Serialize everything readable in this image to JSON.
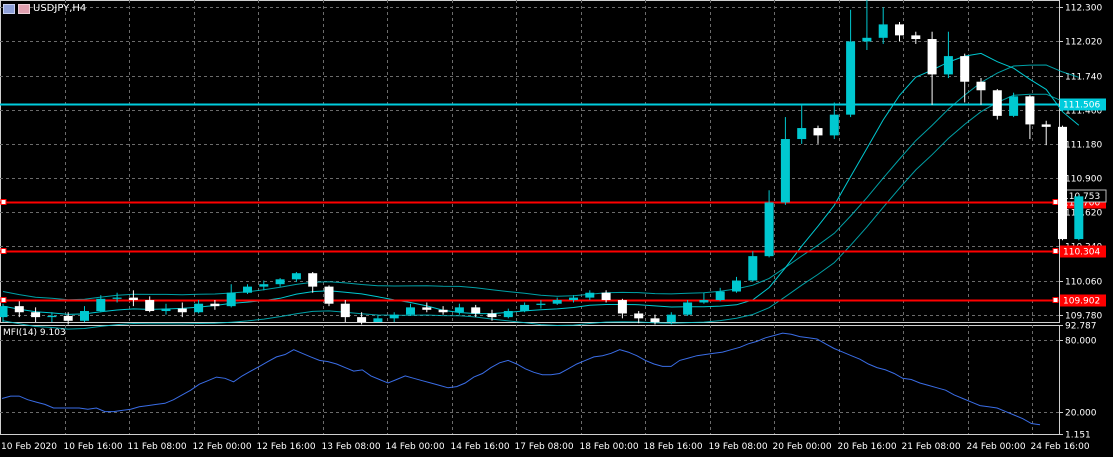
{
  "window": {
    "title": "USDJPY,H4"
  },
  "chart_data": {
    "type": "candlestick",
    "symbol": "USDJPY",
    "timeframe": "H4",
    "price_ylim": [
      109.72,
      112.36
    ],
    "price_ticks": [
      "112.300",
      "112.020",
      "111.740",
      "111.460",
      "111.180",
      "110.900",
      "110.620",
      "110.340",
      "110.060",
      "109.780"
    ],
    "current_price_labels": [
      {
        "value": 110.753,
        "text": "110.753",
        "bg": "#000000",
        "fg": "#ffffff"
      }
    ],
    "horizontal_lines": [
      {
        "value": 111.506,
        "label": "111.506",
        "color": "#00ccdd"
      },
      {
        "value": 110.7,
        "label": "110.700",
        "color": "#ff0000"
      },
      {
        "value": 110.304,
        "label": "110.304",
        "color": "#ff0000"
      },
      {
        "value": 109.902,
        "label": "109.902",
        "color": "#ff0000"
      }
    ],
    "x_labels": [
      "10 Feb 2020",
      "10 Feb 16:00",
      "11 Feb 08:00",
      "12 Feb 00:00",
      "12 Feb 16:00",
      "13 Feb 08:00",
      "14 Feb 00:00",
      "14 Feb 16:00",
      "17 Feb 08:00",
      "18 Feb 00:00",
      "18 Feb 16:00",
      "19 Feb 08:00",
      "20 Feb 00:00",
      "20 Feb 16:00",
      "21 Feb 08:00",
      "24 Feb 00:00",
      "24 Feb 16:00"
    ],
    "candles": [
      [
        109.76,
        109.85,
        109.72,
        109.87
      ],
      [
        109.85,
        109.8,
        109.76,
        109.89
      ],
      [
        109.8,
        109.76,
        109.72,
        109.84
      ],
      [
        109.76,
        109.77,
        109.72,
        109.8
      ],
      [
        109.77,
        109.73,
        109.7,
        109.8
      ],
      [
        109.73,
        109.81,
        109.72,
        109.85
      ],
      [
        109.81,
        109.91,
        109.8,
        109.94
      ],
      [
        109.91,
        109.92,
        109.88,
        109.96
      ],
      [
        109.92,
        109.9,
        109.85,
        109.98
      ],
      [
        109.9,
        109.81,
        109.8,
        109.93
      ],
      [
        109.81,
        109.83,
        109.78,
        109.87
      ],
      [
        109.83,
        109.8,
        109.76,
        109.88
      ],
      [
        109.8,
        109.87,
        109.79,
        109.9
      ],
      [
        109.87,
        109.85,
        109.82,
        109.9
      ],
      [
        109.85,
        109.96,
        109.84,
        110.03
      ],
      [
        109.96,
        110.01,
        109.95,
        110.03
      ],
      [
        110.01,
        110.03,
        109.98,
        110.06
      ],
      [
        110.03,
        110.07,
        110.01,
        110.08
      ],
      [
        110.07,
        110.12,
        110.05,
        110.13
      ],
      [
        110.12,
        110.01,
        109.96,
        110.13
      ],
      [
        110.01,
        109.87,
        109.85,
        110.02
      ],
      [
        109.87,
        109.76,
        109.72,
        109.9
      ],
      [
        109.76,
        109.72,
        109.7,
        109.8
      ],
      [
        109.72,
        109.75,
        109.72,
        109.78
      ],
      [
        109.75,
        109.78,
        109.72,
        109.8
      ],
      [
        109.78,
        109.84,
        109.77,
        109.87
      ],
      [
        109.84,
        109.82,
        109.8,
        109.88
      ],
      [
        109.82,
        109.8,
        109.78,
        109.85
      ],
      [
        109.8,
        109.84,
        109.78,
        109.87
      ],
      [
        109.84,
        109.79,
        109.76,
        109.86
      ],
      [
        109.79,
        109.76,
        109.73,
        109.82
      ],
      [
        109.76,
        109.81,
        109.75,
        109.83
      ],
      [
        109.81,
        109.86,
        109.8,
        109.88
      ],
      [
        109.86,
        109.87,
        109.83,
        109.9
      ],
      [
        109.87,
        109.9,
        109.86,
        109.92
      ],
      [
        109.9,
        109.92,
        109.88,
        109.94
      ],
      [
        109.92,
        109.96,
        109.9,
        109.98
      ],
      [
        109.96,
        109.9,
        109.88,
        109.98
      ],
      [
        109.9,
        109.79,
        109.75,
        109.91
      ],
      [
        109.79,
        109.75,
        109.71,
        109.81
      ],
      [
        109.75,
        109.72,
        109.7,
        109.78
      ],
      [
        109.72,
        109.78,
        109.7,
        109.8
      ],
      [
        109.78,
        109.88,
        109.77,
        109.9
      ],
      [
        109.88,
        109.9,
        109.87,
        109.96
      ],
      [
        109.9,
        109.97,
        109.89,
        110.0
      ],
      [
        109.97,
        110.06,
        109.96,
        110.09
      ],
      [
        110.06,
        110.26,
        110.05,
        110.3
      ],
      [
        110.26,
        110.7,
        110.25,
        110.8
      ],
      [
        110.7,
        111.22,
        110.68,
        111.4
      ],
      [
        111.22,
        111.31,
        111.18,
        111.5
      ],
      [
        111.31,
        111.25,
        111.18,
        111.33
      ],
      [
        111.25,
        111.42,
        111.22,
        111.52
      ],
      [
        111.42,
        112.02,
        111.4,
        112.28
      ],
      [
        112.02,
        112.05,
        111.95,
        112.38
      ],
      [
        112.05,
        112.16,
        112.0,
        112.3
      ],
      [
        112.16,
        112.07,
        112.02,
        112.18
      ],
      [
        112.07,
        112.04,
        112.0,
        112.1
      ],
      [
        112.04,
        111.75,
        111.5,
        112.1
      ],
      [
        111.75,
        111.9,
        111.72,
        112.1
      ],
      [
        111.9,
        111.69,
        111.52,
        111.92
      ],
      [
        111.69,
        111.62,
        111.5,
        111.72
      ],
      [
        111.62,
        111.41,
        111.38,
        111.63
      ],
      [
        111.41,
        111.57,
        111.4,
        111.6
      ],
      [
        111.57,
        111.34,
        111.22,
        111.58
      ],
      [
        111.34,
        111.32,
        111.17,
        111.37
      ],
      [
        111.32,
        110.4,
        110.39,
        111.33
      ],
      [
        110.4,
        110.75,
        110.39,
        110.76
      ]
    ],
    "indicator": {
      "name": "MFI(14)",
      "label": "MFI(14) 9.103",
      "value": 9.103,
      "ylim": [
        1.151,
        92.787
      ],
      "ticks": [
        "92.787",
        "80.000",
        "20.000",
        "1.151"
      ],
      "levels": [
        80,
        20
      ],
      "values": [
        31,
        33,
        33,
        30,
        28,
        26,
        23,
        23,
        23,
        23,
        22,
        23,
        20,
        20,
        21,
        22,
        24,
        25,
        26,
        27,
        30,
        34,
        38,
        43,
        46,
        49,
        48,
        45,
        50,
        54,
        58,
        62,
        66,
        68,
        72,
        69,
        66,
        63,
        62,
        60,
        57,
        54,
        55,
        50,
        47,
        44,
        47,
        50,
        48,
        46,
        44,
        42,
        40,
        41,
        44,
        49,
        52,
        57,
        61,
        63,
        60,
        56,
        53,
        51,
        51,
        52,
        56,
        60,
        63,
        66,
        67,
        69,
        72,
        70,
        67,
        63,
        60,
        58,
        58,
        63,
        65,
        67,
        68,
        69,
        70,
        72,
        74,
        77,
        79,
        82,
        84,
        86,
        85,
        83,
        82,
        81,
        77,
        73,
        70,
        67,
        64,
        60,
        57,
        55,
        52,
        48,
        47,
        44,
        42,
        40,
        38,
        34,
        31,
        28,
        25,
        24,
        23,
        20,
        17,
        14,
        10,
        9
      ]
    },
    "colors": {
      "bull": "#00c8d0",
      "bear": "#ffffff",
      "grid": "#6b6b6b",
      "axis_text": "#ffffff",
      "band": "#00c8d0",
      "mfi": "#3a6de6",
      "hline_cyan": "#00ccdd",
      "hline_red": "#ff0000"
    }
  }
}
